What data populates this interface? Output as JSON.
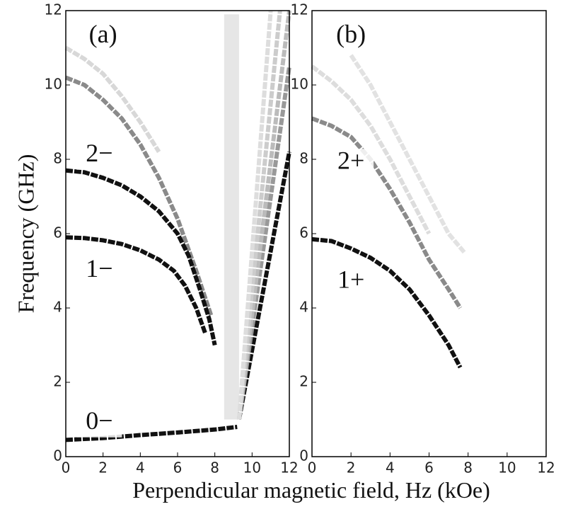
{
  "figure": {
    "xlabel": "Perpendicular magnetic field, Hz (kOe)",
    "ylabel": "Frequency (GHz)"
  },
  "chart_data": [
    {
      "type": "line",
      "panel_label": "(a)",
      "xlim": [
        0,
        12
      ],
      "ylim": [
        0,
        12
      ],
      "xticks": [
        0,
        2,
        4,
        6,
        8,
        10,
        12
      ],
      "yticks": [
        0,
        2,
        4,
        6,
        8,
        10,
        12
      ],
      "shaded_region": {
        "xlim": [
          8.5,
          9.3
        ],
        "ylim": [
          1,
          11.9
        ],
        "color": "#e6e6e6"
      },
      "series": [
        {
          "color": "#d8d8d8",
          "x": [
            0,
            1,
            2,
            3,
            4,
            5
          ],
          "values": [
            11,
            10.7,
            10.3,
            9.7,
            9.0,
            8.2
          ]
        },
        {
          "color": "#8a8a8a",
          "x": [
            0,
            1,
            2,
            3,
            4,
            5,
            6,
            7,
            7.8
          ],
          "values": [
            10.2,
            10.0,
            9.6,
            9.1,
            8.4,
            7.5,
            6.4,
            5.0,
            3.8
          ]
        },
        {
          "name": "2−",
          "color": "#111111",
          "x": [
            0,
            1,
            2,
            3,
            4,
            5,
            6,
            6.6,
            7.2,
            7.7,
            8.0
          ],
          "values": [
            7.7,
            7.65,
            7.5,
            7.3,
            7.0,
            6.6,
            6.0,
            5.4,
            4.5,
            3.7,
            3.0
          ]
        },
        {
          "name": "1−",
          "color": "#111111",
          "x": [
            0,
            1,
            2,
            3,
            4,
            5,
            5.8,
            6.4,
            7.0,
            7.5
          ],
          "values": [
            5.9,
            5.88,
            5.82,
            5.72,
            5.55,
            5.3,
            5.0,
            4.6,
            4.0,
            3.3
          ]
        },
        {
          "name": "0−",
          "color": "#111111",
          "x": [
            0,
            2,
            4,
            6,
            8,
            9.2
          ],
          "values": [
            0.45,
            0.5,
            0.58,
            0.65,
            0.73,
            0.8
          ]
        },
        {
          "color": "#111111",
          "x": [
            9.3,
            12
          ],
          "values": [
            1,
            8.2
          ]
        },
        {
          "color": "#999999",
          "x": [
            9.3,
            12
          ],
          "values": [
            1,
            10.5
          ]
        },
        {
          "color": "#bbbbbb",
          "x": [
            9.3,
            12
          ],
          "values": [
            1,
            12
          ]
        },
        {
          "color": "#cccccc",
          "x": [
            9.3,
            11.5
          ],
          "values": [
            1,
            12
          ]
        },
        {
          "color": "#dddddd",
          "x": [
            9.3,
            11
          ],
          "values": [
            1,
            12
          ]
        }
      ]
    },
    {
      "type": "line",
      "panel_label": "(b)",
      "xlim": [
        0,
        12
      ],
      "ylim": [
        0,
        12
      ],
      "xticks": [
        0,
        2,
        4,
        6,
        8,
        10,
        12
      ],
      "yticks": [
        0,
        2,
        4,
        6,
        8,
        10,
        12
      ],
      "series": [
        {
          "color": "#dddddd",
          "x": [
            0,
            1,
            2,
            3,
            4,
            5,
            6
          ],
          "values": [
            10.5,
            10.1,
            9.6,
            8.9,
            8.0,
            7.0,
            6.0
          ]
        },
        {
          "color": "#e2e2e2",
          "x": [
            2,
            3,
            4,
            5,
            6,
            7,
            7.8
          ],
          "values": [
            10.8,
            10.0,
            9.0,
            8.0,
            7.0,
            6.0,
            5.5
          ]
        },
        {
          "name": "2+",
          "color": "#8a8a8a",
          "x": [
            0,
            1,
            2,
            3,
            4,
            5,
            6,
            7,
            7.6
          ],
          "values": [
            9.1,
            8.9,
            8.6,
            8.0,
            7.2,
            6.3,
            5.3,
            4.5,
            4.0
          ]
        },
        {
          "name": "1+",
          "color": "#111111",
          "x": [
            0,
            1,
            2,
            3,
            4,
            5,
            6,
            7,
            7.6
          ],
          "values": [
            5.85,
            5.8,
            5.6,
            5.35,
            5.0,
            4.5,
            3.8,
            3.0,
            2.4
          ]
        }
      ]
    }
  ]
}
